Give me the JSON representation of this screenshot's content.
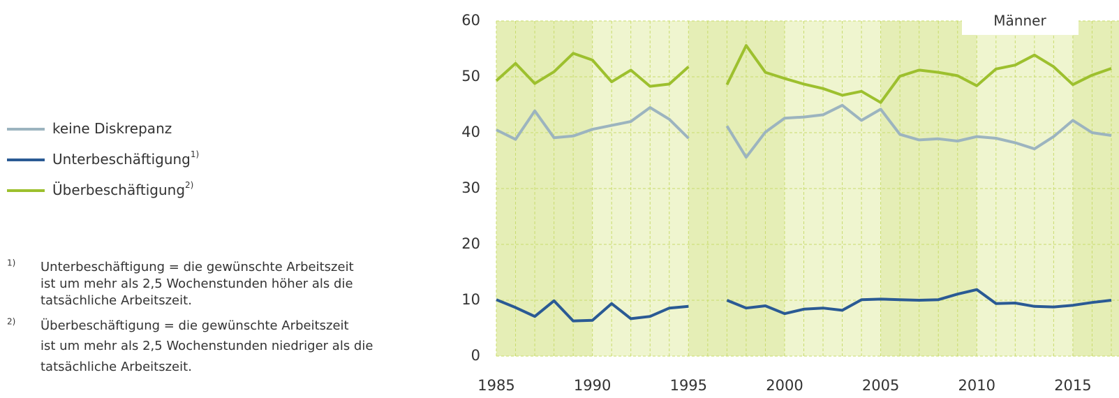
{
  "chart_data": {
    "type": "line",
    "panel_label": "Männer",
    "x": [
      1985,
      1986,
      1987,
      1988,
      1989,
      1990,
      1991,
      1992,
      1993,
      1994,
      1995,
      1996,
      1997,
      1998,
      1999,
      2000,
      2001,
      2002,
      2003,
      2004,
      2005,
      2006,
      2007,
      2008,
      2009,
      2010,
      2011,
      2012,
      2013,
      2014,
      2015,
      2016,
      2017
    ],
    "series": [
      {
        "name": "keine Diskrepanz",
        "color": "#9cb4bf",
        "values": [
          40.5,
          38.8,
          43.9,
          39.1,
          39.4,
          40.6,
          41.3,
          42.0,
          44.5,
          42.4,
          39.0,
          null,
          41.2,
          35.6,
          40.1,
          42.6,
          42.8,
          43.2,
          44.9,
          42.2,
          44.2,
          39.7,
          38.7,
          38.9,
          38.5,
          39.3,
          39.0,
          38.2,
          37.1,
          39.3,
          42.2,
          40.0,
          39.5
        ]
      },
      {
        "name": "Unterbeschäftigung",
        "footnote_ref": "1)",
        "color": "#2a5a94",
        "values": [
          10.1,
          8.7,
          7.1,
          9.9,
          6.3,
          6.4,
          9.4,
          6.7,
          7.1,
          8.6,
          8.9,
          null,
          10.0,
          8.6,
          9.0,
          7.6,
          8.4,
          8.6,
          8.2,
          10.1,
          10.2,
          10.1,
          10.0,
          10.1,
          11.1,
          11.9,
          9.4,
          9.5,
          8.9,
          8.8,
          9.1,
          9.6,
          10.0
        ]
      },
      {
        "name": "Überbeschäftigung",
        "footnote_ref": "2)",
        "color": "#9dc02e",
        "values": [
          49.3,
          52.4,
          48.8,
          50.9,
          54.2,
          53.0,
          49.1,
          51.2,
          48.3,
          48.7,
          51.8,
          null,
          48.6,
          55.6,
          50.8,
          49.7,
          48.7,
          47.9,
          46.7,
          47.4,
          45.4,
          50.1,
          51.2,
          50.8,
          50.2,
          48.4,
          51.4,
          52.1,
          53.9,
          51.8,
          48.6,
          50.3,
          51.5
        ]
      }
    ],
    "xlim": [
      1985,
      2017.4
    ],
    "xticks": [
      1985,
      1990,
      1995,
      2000,
      2005,
      2010,
      2015
    ],
    "ylim": [
      0,
      60
    ],
    "yticks": [
      0,
      10,
      20,
      30,
      40,
      50,
      60
    ],
    "grid": true,
    "footnotes": [
      {
        "marker": "1)",
        "lines": [
          "Unterbeschäftigung = die gewünschte Arbeitszeit",
          "ist um mehr als 2,5 Wochenstunden höher als die",
          "tatsächliche Arbeitszeit."
        ]
      },
      {
        "marker": "2)",
        "lines": [
          "Überbeschäftigung = die gewünschte Arbeitszeit",
          "ist um mehr als 2,5 Wochenstunden niedriger als die",
          "tatsächliche Arbeitszeit."
        ]
      }
    ]
  }
}
